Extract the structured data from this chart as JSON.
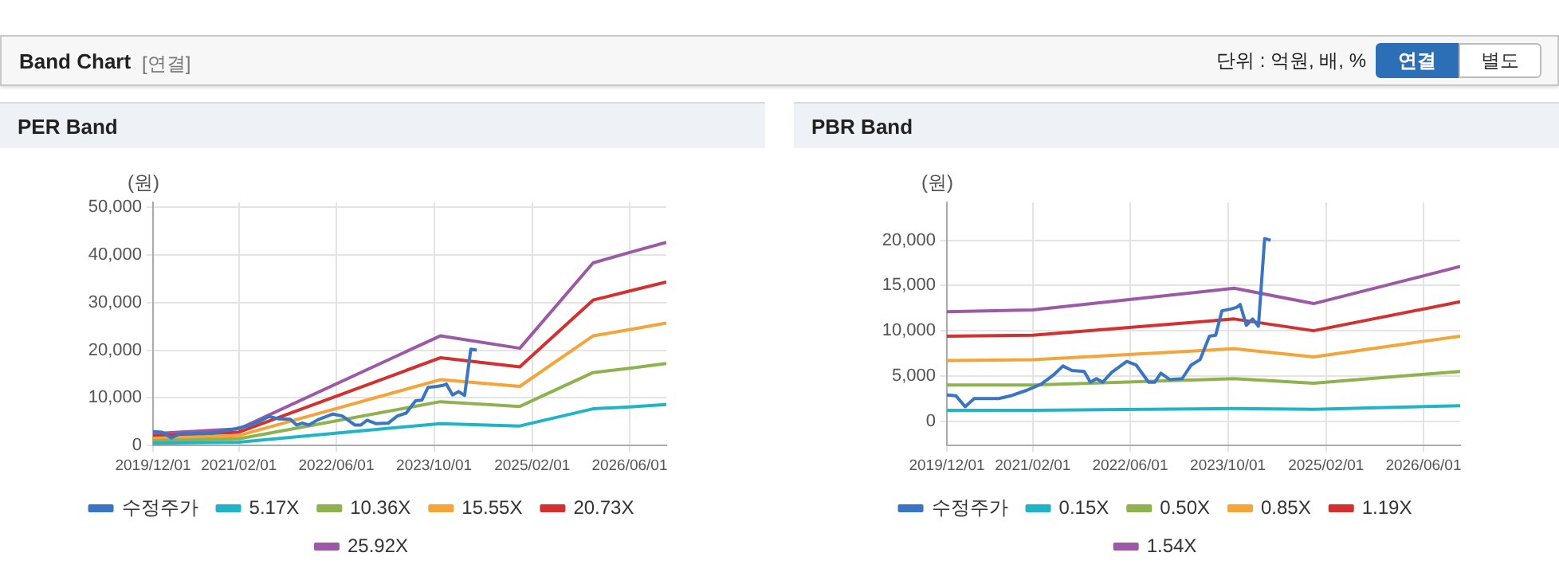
{
  "chart_data": [
    {
      "type": "other",
      "title": "Band Chart",
      "subtitle": "[연결]",
      "annotations": [
        "단위 : 억원, 배, %",
        "연결",
        "별도"
      ]
    },
    {
      "type": "line",
      "title": "PER Band",
      "ylabel": "(원)",
      "legend": "bottom",
      "grid": true,
      "marker": "none",
      "line_style": "solid",
      "xlim": [
        "2019-12-01",
        "2026-12-01"
      ],
      "xticks": [
        {
          "value": "2019-12-01",
          "label": "2019/12/01"
        },
        {
          "value": "2021-02-01",
          "label": "2021/02/01"
        },
        {
          "value": "2022-06-01",
          "label": "2022/06/01"
        },
        {
          "value": "2023-10-01",
          "label": "2023/10/01"
        },
        {
          "value": "2025-02-01",
          "label": "2025/02/01"
        },
        {
          "value": "2026-06-01",
          "label": "2026/06/01"
        }
      ],
      "ylim": [
        0,
        51000
      ],
      "yticks": [
        0,
        {
          "value": 10000,
          "label": "10,000"
        },
        {
          "value": 20000,
          "label": "20,000"
        },
        {
          "value": 30000,
          "label": "30,000"
        },
        {
          "value": 40000,
          "label": "40,000"
        },
        {
          "value": 50000,
          "label": "50,000"
        }
      ],
      "series": [
        {
          "name": "수정주가",
          "color": "#3a75c4",
          "x": [
            "2019-12-01",
            "2020-01-15",
            "2020-03-01",
            "2020-04-15",
            "2020-08-15",
            "2020-10-15",
            "2021-01-01",
            "2021-03-15",
            "2021-05-15",
            "2021-07-01",
            "2021-08-15",
            "2021-10-15",
            "2021-11-15",
            "2021-12-15",
            "2022-01-15",
            "2022-03-01",
            "2022-05-15",
            "2022-07-01",
            "2022-09-01",
            "2022-10-01",
            "2022-11-01",
            "2022-12-15",
            "2023-02-15",
            "2023-04-01",
            "2023-05-15",
            "2023-07-01",
            "2023-08-01",
            "2023-09-01",
            "2023-10-15",
            "2023-11-15",
            "2023-12-01",
            "2024-01-01",
            "2024-02-01",
            "2024-03-01",
            "2024-04-01",
            "2024-05-01"
          ],
          "values": [
            2900,
            2800,
            1600,
            2500,
            2500,
            2800,
            3400,
            4100,
            5100,
            6100,
            5600,
            5500,
            4300,
            4700,
            4300,
            5400,
            6600,
            6200,
            4300,
            4300,
            5300,
            4600,
            4700,
            6200,
            6800,
            9400,
            9500,
            12200,
            12400,
            12600,
            12900,
            10600,
            11300,
            10500,
            20200,
            20000
          ]
        },
        {
          "name": "5.17X",
          "color": "#1fb4c8",
          "x": [
            "2019-12-01",
            "2021-02-01",
            "2023-11-01",
            "2024-12-01",
            "2025-12-01",
            "2026-06-01",
            "2026-12-01"
          ],
          "values": [
            500,
            700,
            4600,
            4100,
            7700,
            8100,
            8600
          ]
        },
        {
          "name": "10.36X",
          "color": "#8db24e",
          "x": [
            "2019-12-01",
            "2021-02-01",
            "2023-11-01",
            "2024-12-01",
            "2025-12-01",
            "2026-06-01",
            "2026-12-01"
          ],
          "values": [
            1000,
            1400,
            9200,
            8200,
            15300,
            16200,
            17200
          ]
        },
        {
          "name": "15.55X",
          "color": "#f5a43a",
          "x": [
            "2019-12-01",
            "2021-02-01",
            "2023-11-01",
            "2024-12-01",
            "2025-12-01",
            "2026-06-01",
            "2026-12-01"
          ],
          "values": [
            1500,
            2100,
            13800,
            12400,
            23000,
            24300,
            25700
          ]
        },
        {
          "name": "20.73X",
          "color": "#d33030",
          "x": [
            "2019-12-01",
            "2021-02-01",
            "2023-11-01",
            "2024-12-01",
            "2025-12-01",
            "2026-06-01",
            "2026-12-01"
          ],
          "values": [
            2000,
            2800,
            18400,
            16500,
            30500,
            32400,
            34300
          ]
        },
        {
          "name": "25.92X",
          "color": "#9b59a6",
          "x": [
            "2019-12-01",
            "2021-02-01",
            "2023-11-01",
            "2024-12-01",
            "2025-12-01",
            "2026-06-01",
            "2026-12-01"
          ],
          "values": [
            2500,
            3500,
            23000,
            20400,
            38300,
            40500,
            42600
          ]
        }
      ]
    },
    {
      "type": "line",
      "title": "PBR Band",
      "ylabel": "(원)",
      "legend": "bottom",
      "grid": true,
      "marker": "none",
      "line_style": "solid",
      "xlim": [
        "2019-12-01",
        "2026-12-01"
      ],
      "xticks": [
        {
          "value": "2019-12-01",
          "label": "2019/12/01"
        },
        {
          "value": "2021-02-01",
          "label": "2021/02/01"
        },
        {
          "value": "2022-06-01",
          "label": "2022/06/01"
        },
        {
          "value": "2023-10-01",
          "label": "2023/10/01"
        },
        {
          "value": "2025-02-01",
          "label": "2025/02/01"
        },
        {
          "value": "2026-06-01",
          "label": "2026/06/01"
        }
      ],
      "ylim": [
        -2700,
        24200
      ],
      "yticks": [
        0,
        {
          "value": 5000,
          "label": "5,000"
        },
        {
          "value": 10000,
          "label": "10,000"
        },
        {
          "value": 15000,
          "label": "15,000"
        },
        {
          "value": 20000,
          "label": "20,000"
        }
      ],
      "series": [
        {
          "name": "수정주가",
          "color": "#3a75c4",
          "x": [
            "2019-12-01",
            "2020-01-15",
            "2020-03-01",
            "2020-04-15",
            "2020-08-15",
            "2020-10-15",
            "2021-01-01",
            "2021-03-15",
            "2021-05-15",
            "2021-07-01",
            "2021-08-15",
            "2021-10-15",
            "2021-11-15",
            "2021-12-15",
            "2022-01-15",
            "2022-03-01",
            "2022-05-15",
            "2022-07-01",
            "2022-09-01",
            "2022-10-01",
            "2022-11-01",
            "2022-12-15",
            "2023-02-15",
            "2023-04-01",
            "2023-05-15",
            "2023-07-01",
            "2023-08-01",
            "2023-09-01",
            "2023-10-15",
            "2023-11-15",
            "2023-12-01",
            "2024-01-01",
            "2024-02-01",
            "2024-03-01",
            "2024-04-01",
            "2024-05-01"
          ],
          "values": [
            2900,
            2800,
            1600,
            2500,
            2500,
            2800,
            3400,
            4100,
            5100,
            6100,
            5600,
            5500,
            4300,
            4700,
            4300,
            5400,
            6600,
            6200,
            4300,
            4300,
            5300,
            4600,
            4700,
            6200,
            6800,
            9400,
            9500,
            12200,
            12400,
            12600,
            12900,
            10600,
            11300,
            10500,
            20200,
            20000
          ]
        },
        {
          "name": "0.15X",
          "color": "#1fb4c8",
          "x": [
            "2019-12-01",
            "2021-02-01",
            "2023-11-01",
            "2024-12-01",
            "2026-12-01"
          ],
          "values": [
            1200,
            1200,
            1400,
            1300,
            1700
          ]
        },
        {
          "name": "0.50X",
          "color": "#8db24e",
          "x": [
            "2019-12-01",
            "2021-02-01",
            "2023-11-01",
            "2024-12-01",
            "2026-12-01"
          ],
          "values": [
            4000,
            4000,
            4700,
            4200,
            5500
          ]
        },
        {
          "name": "0.85X",
          "color": "#f5a43a",
          "x": [
            "2019-12-01",
            "2021-02-01",
            "2023-11-01",
            "2024-12-01",
            "2026-12-01"
          ],
          "values": [
            6700,
            6800,
            8000,
            7100,
            9400
          ]
        },
        {
          "name": "1.19X",
          "color": "#d33030",
          "x": [
            "2019-12-01",
            "2021-02-01",
            "2023-11-01",
            "2024-12-01",
            "2026-12-01"
          ],
          "values": [
            9400,
            9500,
            11300,
            10000,
            13200
          ]
        },
        {
          "name": "1.54X",
          "color": "#9b59a6",
          "x": [
            "2019-12-01",
            "2021-02-01",
            "2023-11-01",
            "2024-12-01",
            "2026-12-01"
          ],
          "values": [
            12100,
            12300,
            14700,
            13000,
            17100
          ]
        }
      ]
    }
  ]
}
